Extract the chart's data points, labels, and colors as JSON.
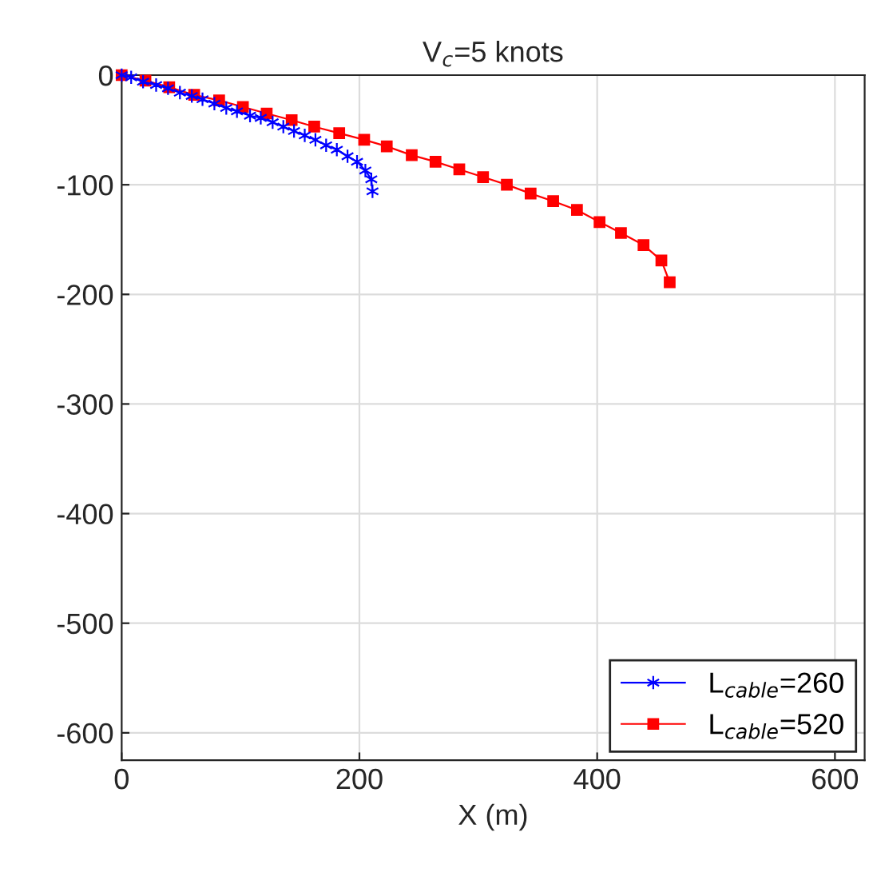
{
  "chart_data": {
    "type": "line",
    "title": "V$_{c}$=5 knots",
    "xlabel": "X (m)",
    "xlim": [
      0,
      625
    ],
    "ylim": [
      -625,
      0
    ],
    "xticks": [
      0,
      200,
      400,
      600
    ],
    "yticks": [
      -600,
      -500,
      -400,
      -300,
      -200,
      -100,
      0
    ],
    "grid": true,
    "legend": "bottom right",
    "series": [
      {
        "name": "L$_{cable}$=260",
        "color": "#0000ff",
        "marker": "cross",
        "x": [
          0,
          8,
          18,
          29,
          39,
          49,
          59,
          68,
          78,
          88,
          97,
          108,
          117,
          127,
          136,
          145,
          154,
          163,
          172,
          181,
          190,
          198,
          205,
          210,
          211
        ],
        "values": [
          0,
          -2,
          -6,
          -9,
          -12,
          -16,
          -19,
          -22,
          -26,
          -30,
          -33,
          -37,
          -39,
          -43,
          -47,
          -51,
          -55,
          -59,
          -64,
          -68,
          -74,
          -79,
          -87,
          -95,
          -106
        ]
      },
      {
        "name": "L$_{cable}$=520",
        "color": "#ff0000",
        "marker": "square",
        "x": [
          0,
          20,
          40,
          61,
          82,
          102,
          122,
          143,
          162,
          183,
          204,
          223,
          244,
          264,
          284,
          304,
          324,
          344,
          363,
          383,
          402,
          420,
          439,
          454,
          461
        ],
        "values": [
          0,
          -5,
          -11,
          -18,
          -23,
          -29,
          -35,
          -41,
          -47,
          -53,
          -59,
          -65,
          -73,
          -79,
          -86,
          -93,
          -100,
          -108,
          -115,
          -123,
          -134,
          -144,
          -155,
          -169,
          -189
        ]
      }
    ]
  }
}
